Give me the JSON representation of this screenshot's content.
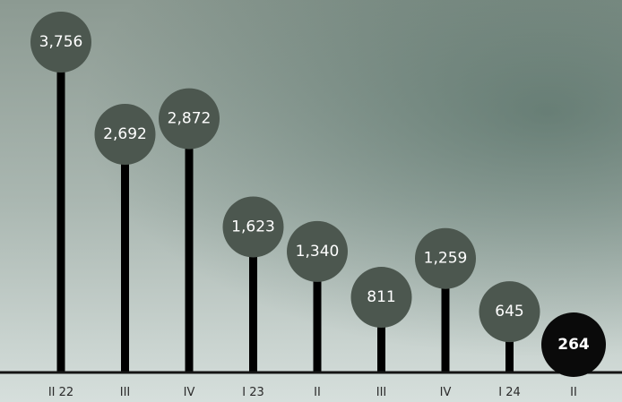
{
  "chart_data": {
    "type": "bar",
    "style": "lollipop",
    "categories": [
      "II 22",
      "III",
      "IV",
      "I 23",
      "II",
      "III",
      "IV",
      "I 24",
      "II"
    ],
    "values": [
      3756,
      2692,
      2872,
      1623,
      1340,
      811,
      1259,
      645,
      264
    ],
    "data_labels": [
      "3,756",
      "2,692",
      "2,872",
      "1,623",
      "1,340",
      "811",
      "1,259",
      "645",
      "264"
    ],
    "highlighted_index": 8,
    "ylim": [
      0,
      4000
    ],
    "grid": false,
    "legend": "none",
    "colors": {
      "stem": "#000000",
      "bubble": "#4c574f",
      "bubble_highlight": "#0a0a0a",
      "label": "#ffffff"
    }
  }
}
